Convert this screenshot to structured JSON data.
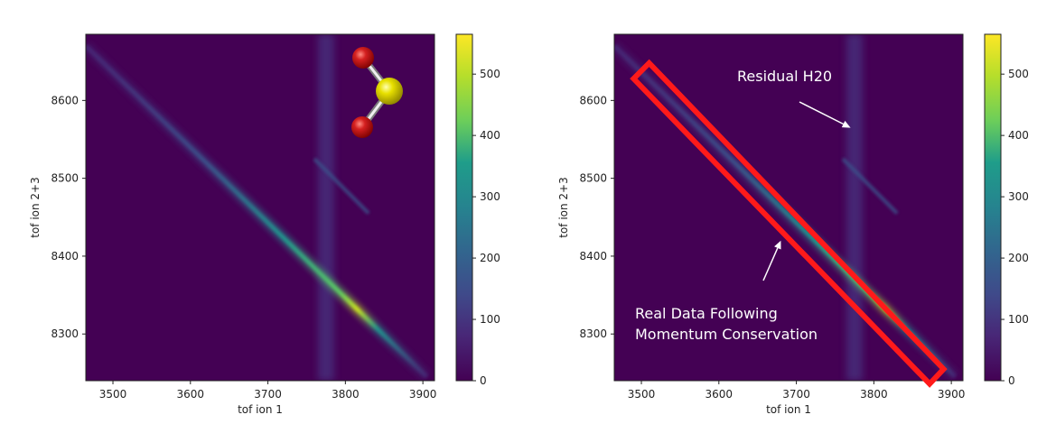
{
  "chart_data": [
    {
      "type": "heatmap",
      "title": "",
      "xlabel": "tof ion 1",
      "ylabel": "tof ion 2+3",
      "xlim": [
        3465,
        3915
      ],
      "ylim": [
        8240,
        8685
      ],
      "xticks": [
        3500,
        3600,
        3700,
        3800,
        3900
      ],
      "yticks": [
        8300,
        8400,
        8500,
        8600
      ],
      "features": {
        "main_diagonal": {
          "from": [
            3465,
            8670
          ],
          "to": [
            3905,
            8245
          ],
          "peak_at": [
            3815,
            8330
          ]
        },
        "secondary_diagonal": {
          "from": [
            3760,
            8525
          ],
          "to": [
            3830,
            8455
          ]
        },
        "vertical_band_x": 3775
      },
      "colorbar": {
        "min": 0,
        "max": 565,
        "ticks": [
          0,
          100,
          200,
          300,
          400,
          500
        ],
        "colormap": "viridis"
      },
      "molecule_icon": "so2-molecule-icon",
      "molecule_colors": {
        "sulfur": "#e8e000",
        "oxygen": "#c01010"
      }
    },
    {
      "type": "heatmap",
      "title": "",
      "xlabel": "tof ion 1",
      "ylabel": "tof ion 2+3",
      "xlim": [
        3465,
        3915
      ],
      "ylim": [
        8240,
        8685
      ],
      "xticks": [
        3500,
        3600,
        3700,
        3800,
        3900
      ],
      "yticks": [
        8300,
        8400,
        8500,
        8600
      ],
      "features": {
        "main_diagonal": {
          "from": [
            3465,
            8670
          ],
          "to": [
            3905,
            8245
          ],
          "peak_at": [
            3815,
            8330
          ]
        },
        "secondary_diagonal": {
          "from": [
            3760,
            8525
          ],
          "to": [
            3830,
            8455
          ]
        },
        "vertical_band_x": 3775
      },
      "colorbar": {
        "min": 0,
        "max": 565,
        "ticks": [
          0,
          100,
          200,
          300,
          400,
          500
        ],
        "colormap": "viridis"
      },
      "annotations": [
        {
          "text": "Residual H20",
          "arrow_to": [
            3770,
            8565
          ]
        },
        {
          "text_lines": [
            "Real Data Following",
            "Momentum Conservation"
          ],
          "arrow_to": [
            3680,
            8420
          ]
        }
      ],
      "highlight_box": {
        "color": "#ff1a1a",
        "corners": [
          [
            3490,
            8628
          ],
          [
            3510,
            8648
          ],
          [
            3890,
            8255
          ],
          [
            3872,
            8236
          ]
        ]
      }
    }
  ]
}
